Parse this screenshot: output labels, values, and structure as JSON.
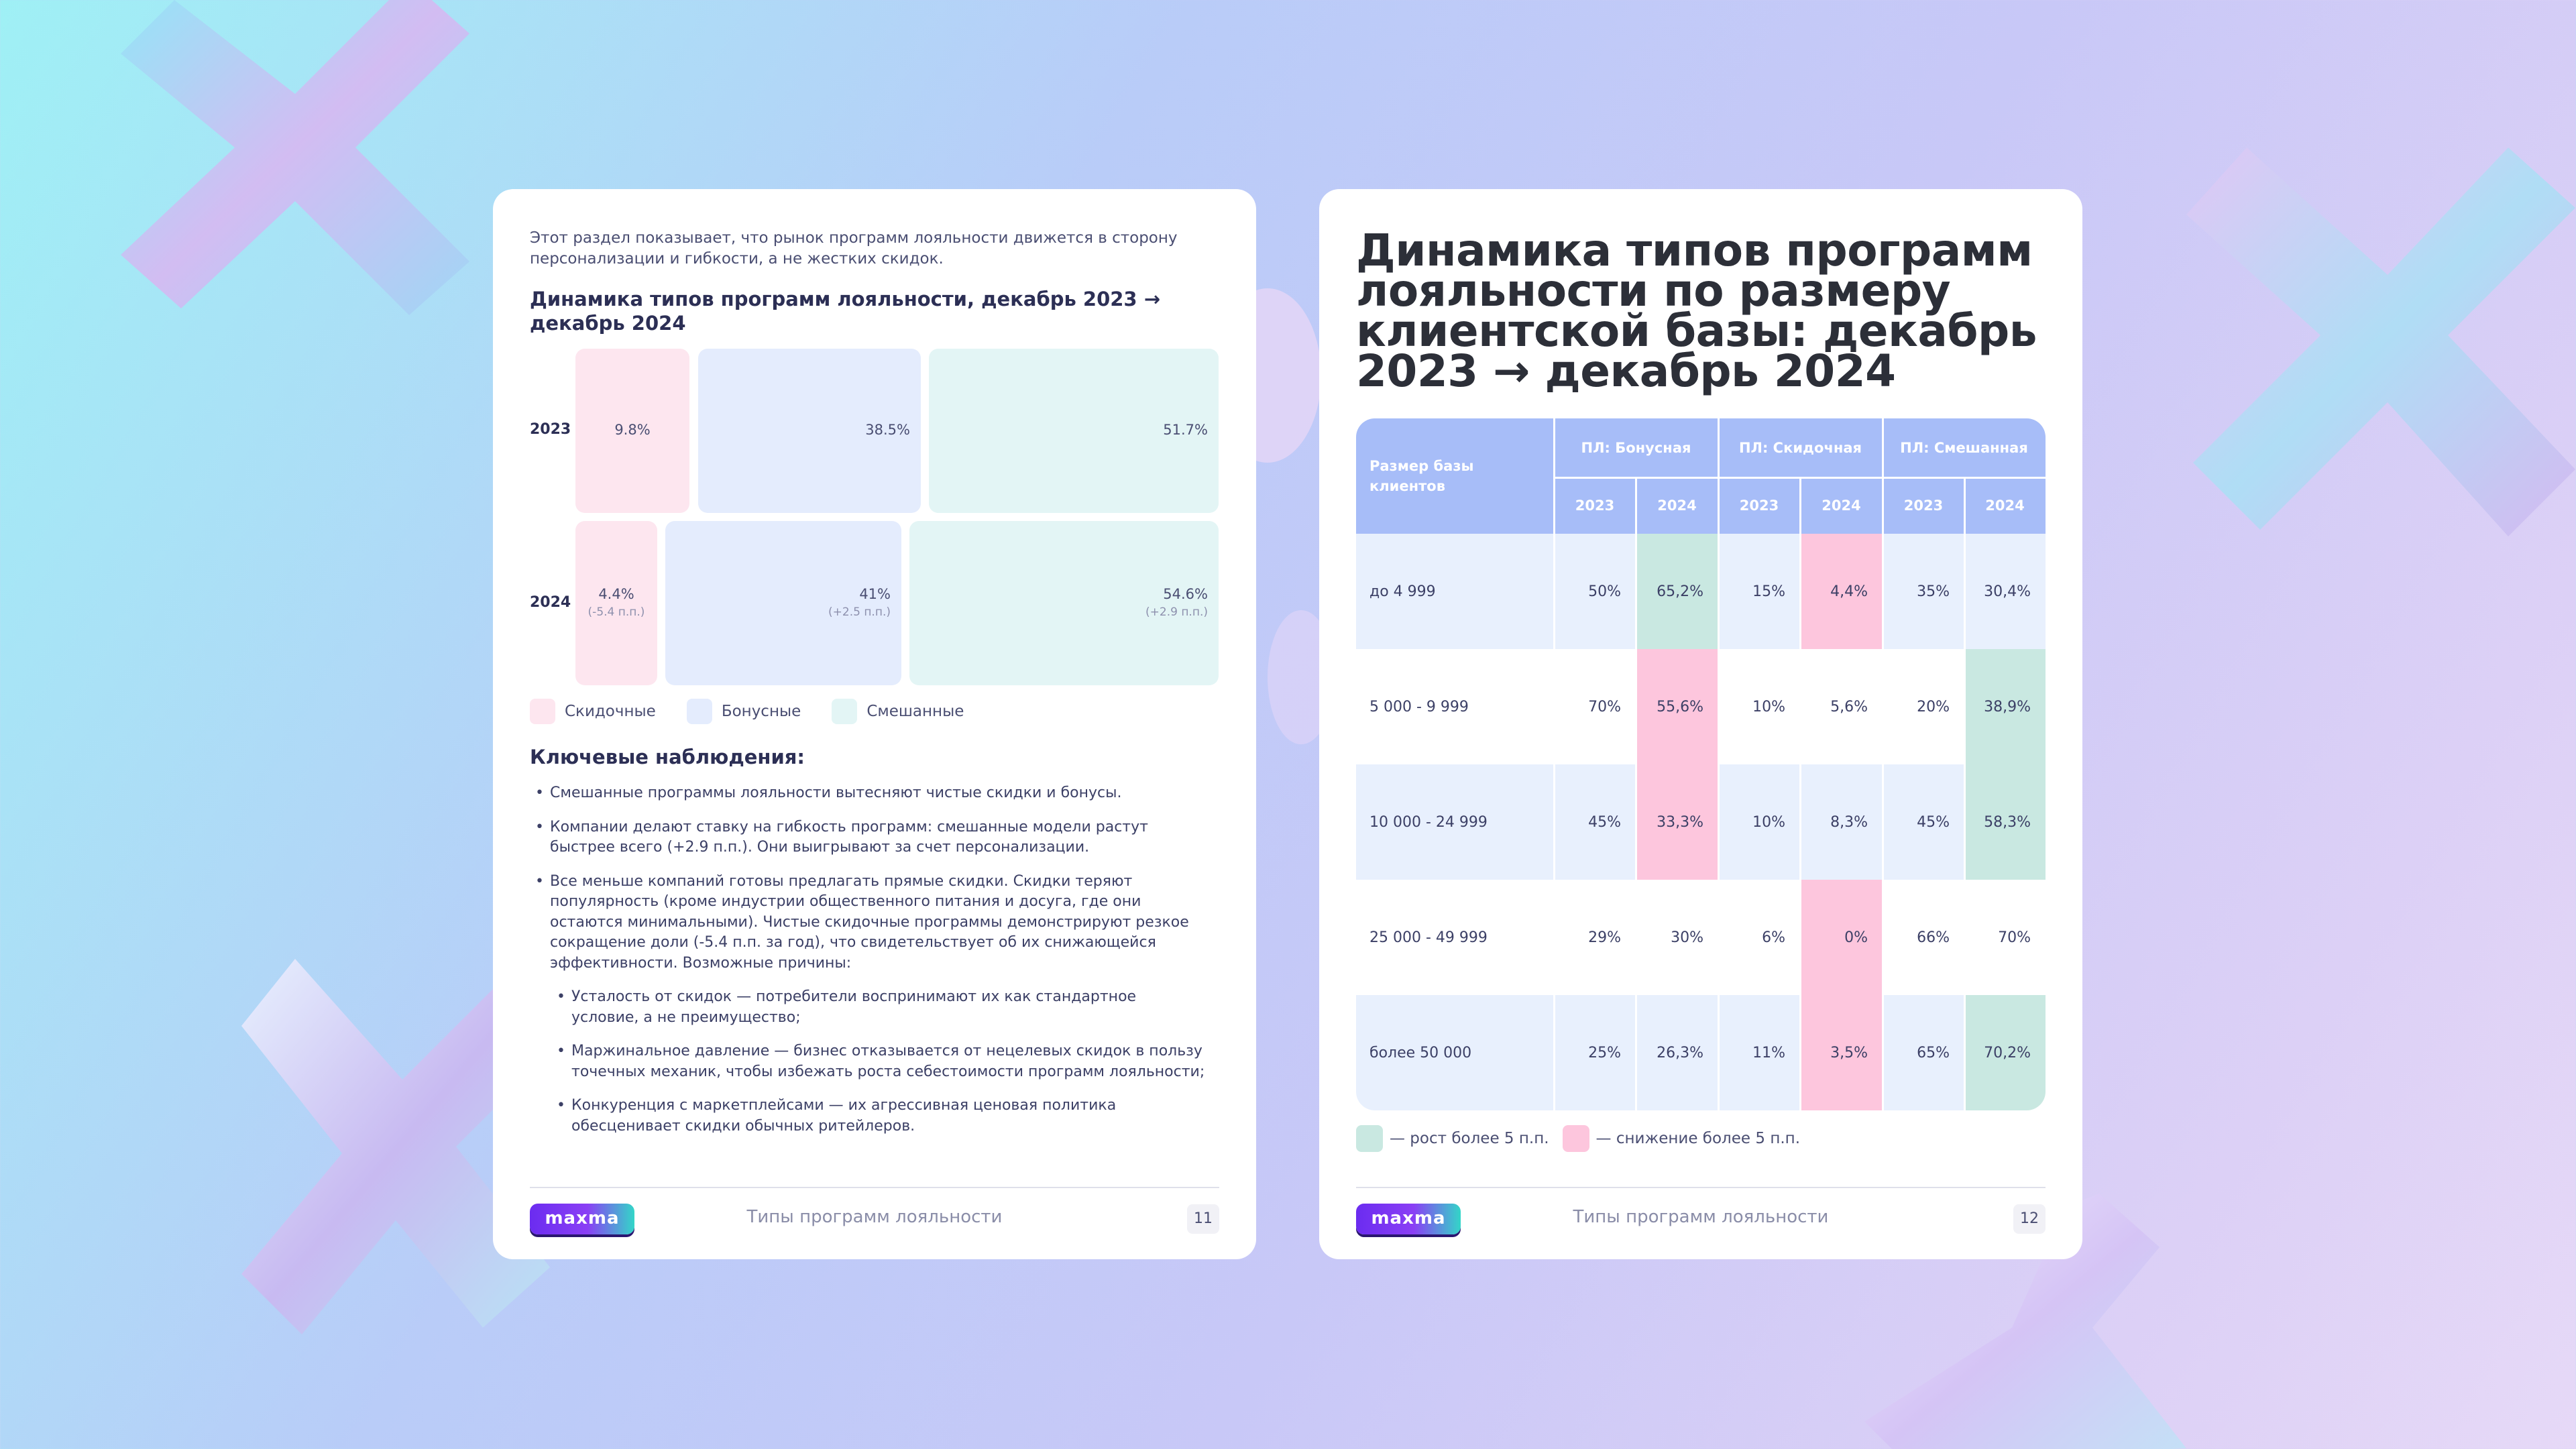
{
  "left_page": {
    "intro": "Этот раздел показывает, что рынок программ лояльности движется в сторону персонализации и гибкости, а не жестких скидок.",
    "chart_title": "Динамика типов программ лояльности, декабрь 2023 → декабрь 2024",
    "legend": [
      {
        "label": "Скидочные",
        "color": "#fde6ef"
      },
      {
        "label": "Бонусные",
        "color": "#e4ecfd"
      },
      {
        "label": "Смешанные",
        "color": "#e3f5f5"
      }
    ],
    "observations_title": "Ключевые наблюдения:",
    "observations": [
      "Смешанные программы лояльности вытесняют чистые скидки и бонусы.",
      "Компании делают ставку на гибкость программ: смешанные модели растут быстрее всего (+2.9 п.п.). Они выигрывают за счет персонализации.",
      "Все меньше компаний готовы предлагать прямые скидки. Скидки теряют популярность (кроме индустрии общественного питания и досуга, где они остаются минимальными). Чистые скидочные программы демонстрируют резкое сокращение доли (-5.4 п.п. за год), что свидетельствует об их снижающейся эффективности. Возможные причины:"
    ],
    "sub_observations": [
      "Усталость от скидок — потребители воспринимают их как стандартное условие, а не преимущество;",
      "Маржинальное давление — бизнес отказывается от нецелевых скидок в пользу точечных механик, чтобы избежать роста себестоимости программ лояльности;",
      "Конкуренция с маркетплейсами — их агрессивная ценовая политика обесценивает скидки обычных ритейлеров."
    ],
    "footer": {
      "logo": "maxma",
      "section": "Типы программ лояльности",
      "page": "11"
    }
  },
  "chart_data": {
    "type": "bar",
    "orientation": "horizontal-stacked-100",
    "title": "Динамика типов программ лояльности, декабрь 2023 → декабрь 2024",
    "categories": [
      "2023",
      "2024"
    ],
    "series": [
      {
        "name": "Скидочные",
        "values": [
          9.8,
          4.4
        ],
        "labels": [
          "9.8%",
          "4.4%"
        ],
        "deltas": [
          "",
          "(-5.4 п.п.)"
        ]
      },
      {
        "name": "Бонусные",
        "values": [
          38.5,
          41
        ],
        "labels": [
          "38.5%",
          "41%"
        ],
        "deltas": [
          "",
          "(+2.5 п.п.)"
        ]
      },
      {
        "name": "Смешанные",
        "values": [
          51.7,
          54.6
        ],
        "labels": [
          "51.7%",
          "54.6%"
        ],
        "deltas": [
          "",
          "(+2.9 п.п.)"
        ]
      }
    ],
    "xlim": [
      0,
      100
    ]
  },
  "right_page": {
    "title": "Динамика типов программ лояльности по размеру клиентской базы: декабрь 2023 → декабрь 2024",
    "table": {
      "first_header": "Размер  базы клиентов",
      "groups": [
        "ПЛ: Бонусная",
        "ПЛ: Скидочная",
        "ПЛ: Смешанная"
      ],
      "years": [
        "2023",
        "2024",
        "2023",
        "2024",
        "2023",
        "2024"
      ],
      "rows": [
        {
          "label": "до 4 999",
          "values": [
            "50%",
            "65,2%",
            "15%",
            "4,4%",
            "35%",
            "30,4%"
          ],
          "highlight": [
            "",
            "green",
            "",
            "pink",
            "",
            ""
          ]
        },
        {
          "label": "5 000 - 9 999",
          "values": [
            "70%",
            "55,6%",
            "10%",
            "5,6%",
            "20%",
            "38,9%"
          ],
          "highlight": [
            "",
            "pink",
            "",
            "",
            "",
            "green"
          ]
        },
        {
          "label": "10 000 - 24 999",
          "values": [
            "45%",
            "33,3%",
            "10%",
            "8,3%",
            "45%",
            "58,3%"
          ],
          "highlight": [
            "",
            "pink",
            "",
            "",
            "",
            "green"
          ]
        },
        {
          "label": "25 000 - 49 999",
          "values": [
            "29%",
            "30%",
            "6%",
            "0%",
            "66%",
            "70%"
          ],
          "highlight": [
            "",
            "",
            "",
            "pink",
            "",
            ""
          ]
        },
        {
          "label": "более 50 000",
          "values": [
            "25%",
            "26,3%",
            "11%",
            "3,5%",
            "65%",
            "70,2%"
          ],
          "highlight": [
            "",
            "",
            "",
            "pink",
            "",
            "green"
          ]
        }
      ]
    },
    "legend": [
      {
        "label": "— рост более 5 п.п.",
        "color": "#c9e8e1"
      },
      {
        "label": "— снижение более 5 п.п.",
        "color": "#fdc6dd"
      }
    ],
    "footer": {
      "logo": "maxma",
      "section": "Типы программ лояльности",
      "page": "12"
    }
  }
}
